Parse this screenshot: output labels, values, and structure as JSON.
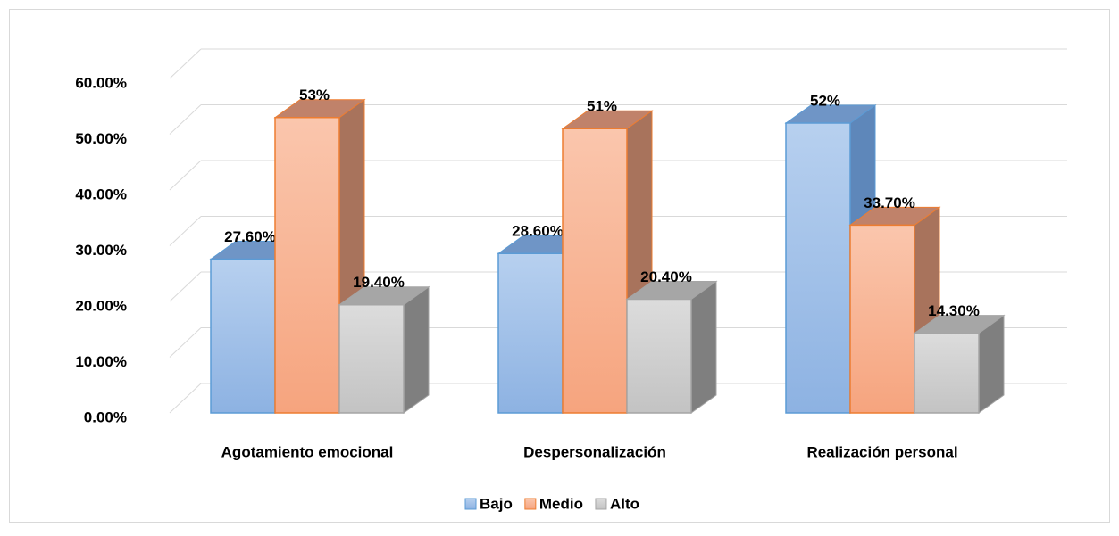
{
  "chart_data": {
    "type": "bar3d",
    "categories": [
      "Agotamiento emocional",
      "Despersonalización",
      "Realización personal"
    ],
    "series": [
      {
        "name": "Bajo",
        "color": "#8fb4e3",
        "values": [
          27.6,
          28.6,
          52
        ],
        "value_labels": [
          "27.60%",
          "28.60%",
          "52%"
        ]
      },
      {
        "name": "Medio",
        "color": "#f6a580",
        "values": [
          53,
          51,
          33.7
        ],
        "value_labels": [
          "53%",
          "51%",
          "33.70%"
        ]
      },
      {
        "name": "Alto",
        "color": "#c9c9c9",
        "values": [
          19.4,
          20.4,
          14.3
        ],
        "value_labels": [
          "19.40%",
          "20.40%",
          "14.30%"
        ]
      }
    ],
    "ylim": [
      0,
      60
    ],
    "yticks": [
      {
        "value": 0,
        "label": "0.00%"
      },
      {
        "value": 10,
        "label": "10.00%"
      },
      {
        "value": 20,
        "label": "20.00%"
      },
      {
        "value": 30,
        "label": "30.00%"
      },
      {
        "value": 40,
        "label": "40.00%"
      },
      {
        "value": 50,
        "label": "50.00%"
      },
      {
        "value": 60,
        "label": "60.00%"
      }
    ],
    "grid": true,
    "legend": "bottom"
  }
}
